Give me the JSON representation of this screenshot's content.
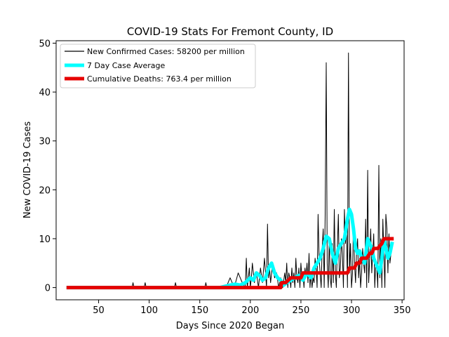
{
  "chart_data": {
    "type": "line",
    "title": "COVID-19 Stats For Fremont County, ID",
    "xlabel": "Days Since 2020 Began",
    "ylabel": "New COVID-19 Cases",
    "xlim": [
      8,
      352
    ],
    "ylim": [
      -2.5,
      50.5
    ],
    "xticks": [
      50,
      100,
      150,
      200,
      250,
      300,
      350
    ],
    "yticks": [
      0,
      10,
      20,
      30,
      40,
      50
    ],
    "legend_position": "top-left",
    "series": [
      {
        "name": "New Confirmed Cases: 58200 per million",
        "color": "#000000",
        "x": [
          20,
          83,
          84,
          85,
          95,
          96,
          97,
          125,
          126,
          127,
          155,
          156,
          157,
          176,
          180,
          184,
          188,
          192,
          195,
          196,
          197,
          198,
          199,
          200,
          201,
          202,
          204,
          206,
          208,
          210,
          212,
          214,
          216,
          217,
          218,
          219,
          220,
          222,
          224,
          226,
          228,
          230,
          232,
          234,
          235,
          236,
          237,
          238,
          239,
          240,
          241,
          242,
          243,
          244,
          245,
          246,
          247,
          248,
          249,
          250,
          251,
          252,
          253,
          254,
          255,
          256,
          257,
          258,
          259,
          260,
          261,
          262,
          263,
          264,
          265,
          266,
          267,
          268,
          269,
          270,
          271,
          272,
          273,
          274,
          275,
          276,
          277,
          278,
          279,
          280,
          281,
          282,
          283,
          284,
          285,
          286,
          287,
          288,
          289,
          290,
          291,
          292,
          293,
          294,
          295,
          296,
          297,
          298,
          299,
          300,
          301,
          302,
          303,
          304,
          305,
          306,
          307,
          308,
          309,
          310,
          311,
          312,
          313,
          314,
          315,
          316,
          317,
          318,
          319,
          320,
          321,
          322,
          323,
          324,
          325,
          326,
          327,
          328,
          329,
          330,
          331,
          332,
          333,
          334,
          335,
          336,
          337,
          338,
          339,
          340
        ],
        "y": [
          0,
          0,
          1,
          0,
          0,
          1,
          0,
          0,
          1,
          0,
          0,
          1,
          0,
          0,
          2,
          0,
          3,
          1,
          0,
          6,
          0,
          2,
          4,
          0,
          2,
          5,
          1,
          3,
          0,
          4,
          1,
          6,
          0,
          13,
          2,
          4,
          1,
          5,
          2,
          3,
          0,
          2,
          0,
          3,
          1,
          5,
          0,
          3,
          2,
          0,
          4,
          1,
          3,
          0,
          6,
          2,
          1,
          4,
          0,
          5,
          2,
          3,
          0,
          4,
          2,
          5,
          1,
          7,
          0,
          3,
          0,
          2,
          1,
          6,
          4,
          0,
          15,
          6,
          3,
          0,
          8,
          12,
          0,
          15,
          46,
          5,
          0,
          10,
          2,
          0,
          9,
          1,
          16,
          3,
          0,
          8,
          15,
          2,
          4,
          10,
          7,
          0,
          16,
          9,
          12,
          0,
          48,
          3,
          9,
          0,
          3,
          14,
          5,
          1,
          7,
          10,
          2,
          6,
          0,
          3,
          8,
          5,
          3,
          14,
          0,
          24,
          1,
          6,
          12,
          3,
          7,
          11,
          0,
          5,
          4,
          0,
          25,
          2,
          10,
          0,
          14,
          7,
          0,
          15,
          12,
          3,
          11,
          5,
          7,
          9
        ]
      },
      {
        "name": "7 Day Case Average",
        "color": "#00ffff",
        "x": [
          20,
          170,
          180,
          185,
          190,
          195,
          200,
          203,
          206,
          209,
          212,
          215,
          218,
          221,
          224,
          227,
          230,
          233,
          236,
          240,
          244,
          248,
          252,
          256,
          260,
          263,
          266,
          269,
          272,
          275,
          278,
          281,
          284,
          287,
          290,
          293,
          296,
          298,
          300,
          302,
          304,
          306,
          308,
          310,
          313,
          316,
          318,
          320,
          322,
          324,
          326,
          328,
          330,
          332,
          334,
          336,
          338,
          340
        ],
        "y": [
          0,
          0,
          0.5,
          0.7,
          0.5,
          1,
          2,
          1.5,
          3,
          2.5,
          1.5,
          2,
          4,
          5,
          3,
          2,
          1.5,
          0.5,
          1,
          1.5,
          2,
          2.5,
          1.5,
          3,
          2,
          4,
          5,
          6,
          8,
          10.5,
          10,
          7,
          5,
          8,
          9,
          10,
          14,
          16,
          15,
          12,
          8,
          7,
          7.5,
          6,
          5,
          10,
          9,
          8,
          6,
          5,
          4,
          3,
          6,
          10,
          8,
          6,
          7,
          9
        ]
      },
      {
        "name": "Cumulative Deaths: 763.4 per million",
        "color": "#e60000",
        "x": [
          20,
          230,
          231,
          235,
          240,
          250,
          252,
          296,
          298,
          303,
          305,
          308,
          310,
          315,
          318,
          320,
          322,
          324,
          326,
          330,
          332,
          338,
          339,
          340
        ],
        "y": [
          0,
          0,
          1,
          1,
          2,
          2,
          3,
          3,
          4,
          4,
          5,
          5,
          6,
          6,
          7,
          7,
          8,
          8,
          8,
          9,
          10,
          10,
          10,
          10
        ]
      }
    ]
  }
}
